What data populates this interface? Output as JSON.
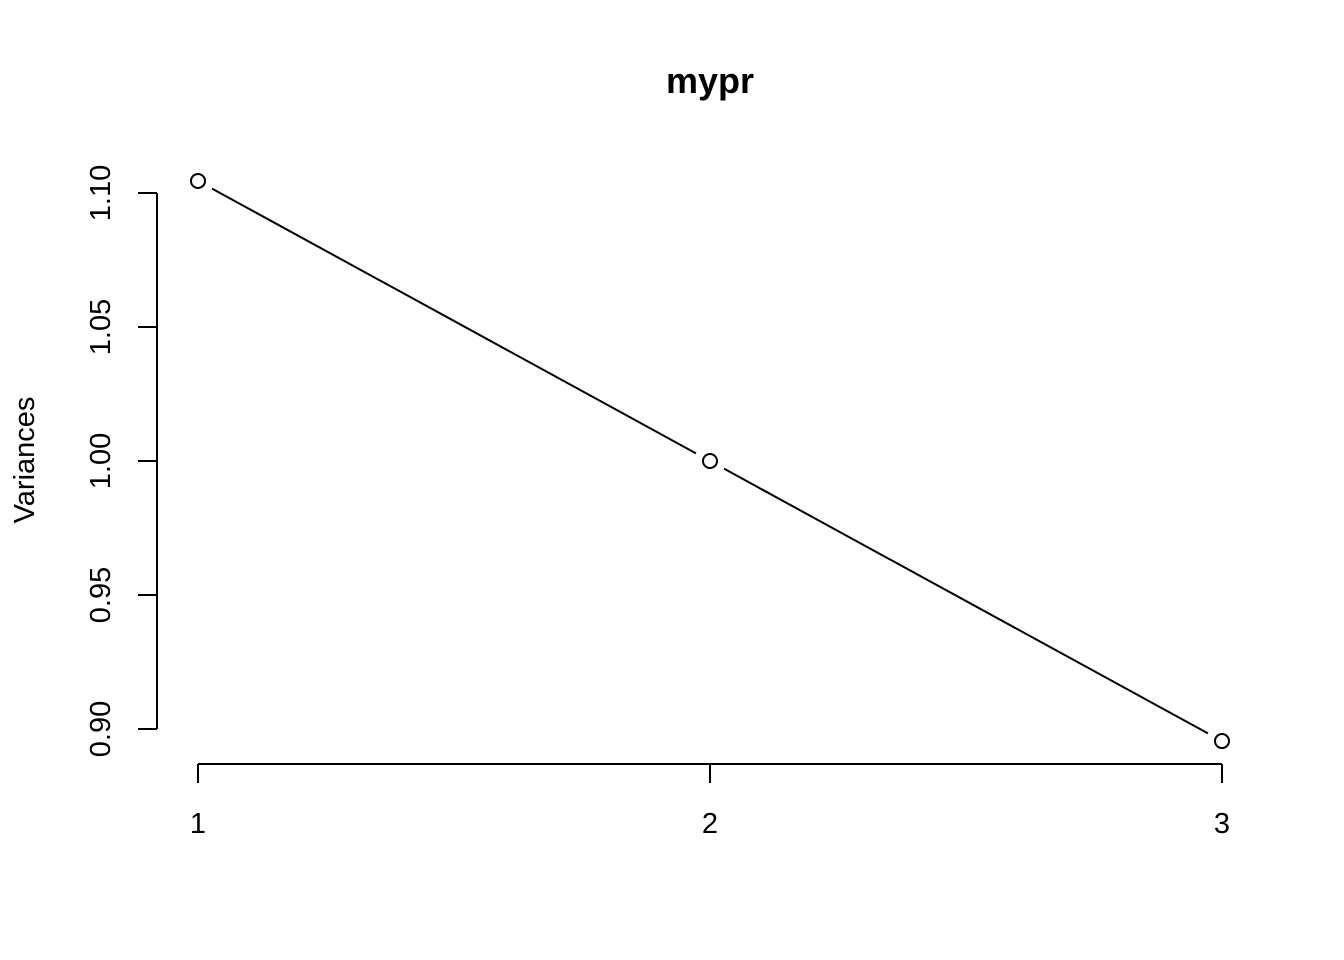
{
  "chart_data": {
    "type": "line",
    "title": "mypr",
    "xlabel": "",
    "ylabel": "Variances",
    "x": [
      1,
      2,
      3
    ],
    "x_tick_labels": [
      "1",
      "2",
      "3"
    ],
    "y_ticks": [
      0.9,
      0.95,
      1.0,
      1.05,
      1.1
    ],
    "y_tick_labels": [
      "0.90",
      "0.95",
      "1.00",
      "1.05",
      "1.10"
    ],
    "ylim": [
      0.9,
      1.1
    ],
    "xlim": [
      1,
      3
    ],
    "series": [
      {
        "values": [
          1.1045,
          1.0,
          0.8955
        ],
        "marker": "open-circle",
        "line": "solid"
      }
    ],
    "grid": false,
    "legend": "none"
  }
}
